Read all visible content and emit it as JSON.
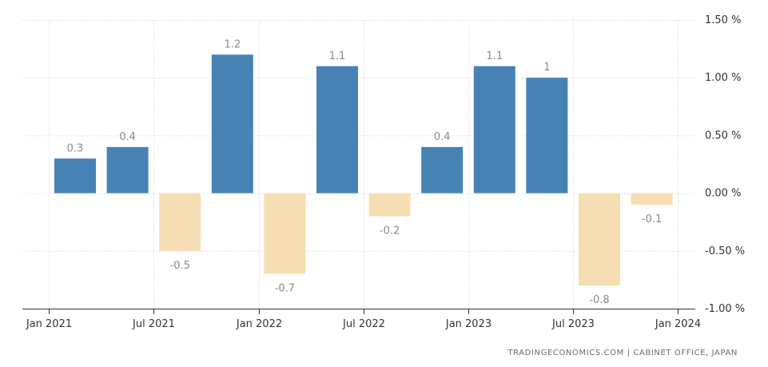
{
  "chart_data": {
    "type": "bar",
    "categories": [
      "2021-Q1",
      "2021-Q2",
      "2021-Q3",
      "2021-Q4",
      "2022-Q1",
      "2022-Q2",
      "2022-Q3",
      "2022-Q4",
      "2023-Q1",
      "2023-Q2",
      "2023-Q3",
      "2023-Q4"
    ],
    "values": [
      0.3,
      0.4,
      -0.5,
      1.2,
      -0.7,
      1.1,
      -0.2,
      0.4,
      1.1,
      1.0,
      -0.8,
      -0.1
    ],
    "data_labels": [
      "0.3",
      "0.4",
      "-0.5",
      "1.2",
      "-0.7",
      "1.1",
      "-0.2",
      "0.4",
      "1.1",
      "1",
      "-0.8",
      "-0.1"
    ],
    "title": "",
    "xlabel": "",
    "ylabel": "",
    "ylim": [
      -1.0,
      1.5
    ],
    "y_ticks": [
      1.5,
      1.0,
      0.5,
      0.0,
      -0.5,
      -1.0
    ],
    "y_tick_labels": [
      "1.50 %",
      "1.00 %",
      "0.50 %",
      "0.00 %",
      "-0.50 %",
      "-1.00 %"
    ],
    "x_tick_labels": [
      "Jan 2021",
      "Jul 2021",
      "Jan 2022",
      "Jul 2022",
      "Jan 2023",
      "Jul 2023",
      "Jan 2024"
    ],
    "y_axis_position": "right",
    "grid": true,
    "legend": "none",
    "colors": {
      "positive": "#4682b4",
      "negative": "#f5deb3",
      "grid": "#d6d6d6",
      "axis": "#333333"
    }
  },
  "source": "TRADINGECONOMICS.COM | CABINET OFFICE, JAPAN"
}
